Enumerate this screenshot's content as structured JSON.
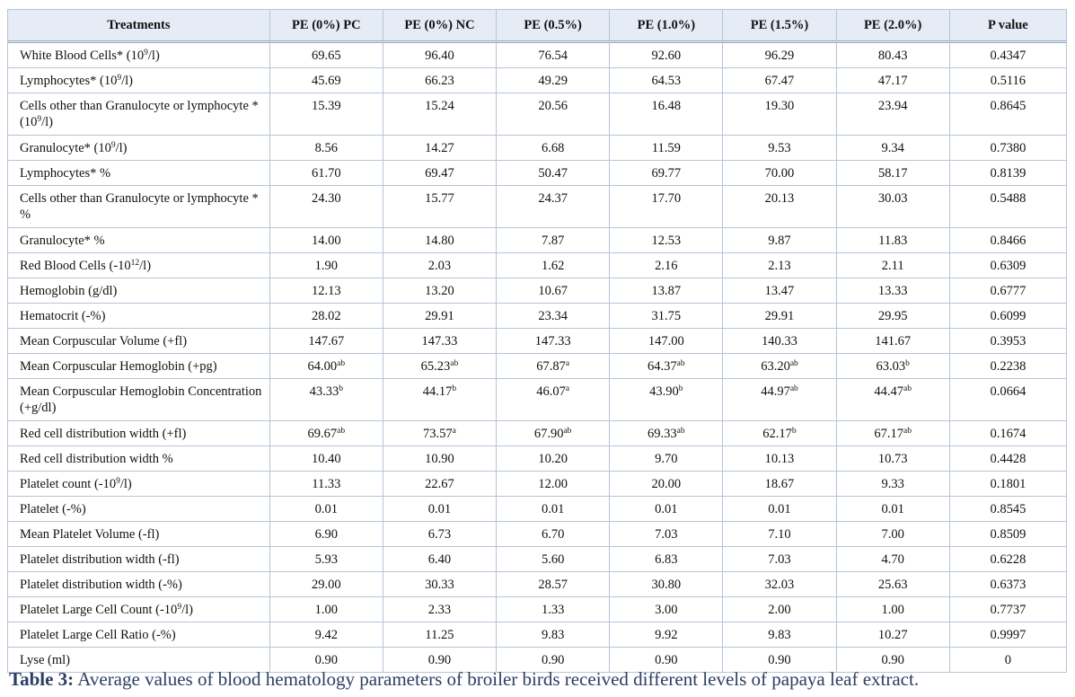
{
  "table": {
    "headers": [
      "Treatments",
      "PE (0%) PC",
      "PE (0%) NC",
      "PE (0.5%)",
      "PE (1.0%)",
      "PE (1.5%)",
      "PE (2.0%)",
      "P value"
    ],
    "rows": [
      {
        "tall": false,
        "label": [
          "White Blood Cells* (10",
          "9",
          "/l)"
        ],
        "cells": [
          [
            "69.65",
            ""
          ],
          [
            "96.40",
            ""
          ],
          [
            "76.54",
            ""
          ],
          [
            "92.60",
            ""
          ],
          [
            "96.29",
            ""
          ],
          [
            "80.43",
            ""
          ],
          [
            "0.4347",
            ""
          ]
        ]
      },
      {
        "tall": false,
        "label": [
          "Lymphocytes* (10",
          "9",
          "/l)"
        ],
        "cells": [
          [
            "45.69",
            ""
          ],
          [
            "66.23",
            ""
          ],
          [
            "49.29",
            ""
          ],
          [
            "64.53",
            ""
          ],
          [
            "67.47",
            ""
          ],
          [
            "47.17",
            ""
          ],
          [
            "0.5116",
            ""
          ]
        ]
      },
      {
        "tall": true,
        "label": [
          "Cells other than Granulocyte or lymphocyte *(10",
          "9",
          "/l)"
        ],
        "cells": [
          [
            "15.39",
            ""
          ],
          [
            "15.24",
            ""
          ],
          [
            "20.56",
            ""
          ],
          [
            "16.48",
            ""
          ],
          [
            "19.30",
            ""
          ],
          [
            "23.94",
            ""
          ],
          [
            "0.8645",
            ""
          ]
        ]
      },
      {
        "tall": false,
        "label": [
          "Granulocyte* (10",
          "9",
          "/l)"
        ],
        "cells": [
          [
            "8.56",
            ""
          ],
          [
            "14.27",
            ""
          ],
          [
            "6.68",
            ""
          ],
          [
            "11.59",
            ""
          ],
          [
            "9.53",
            ""
          ],
          [
            "9.34",
            ""
          ],
          [
            "0.7380",
            ""
          ]
        ]
      },
      {
        "tall": false,
        "label": [
          "Lymphocytes* %",
          "",
          ""
        ],
        "cells": [
          [
            "61.70",
            ""
          ],
          [
            "69.47",
            ""
          ],
          [
            "50.47",
            ""
          ],
          [
            "69.77",
            ""
          ],
          [
            "70.00",
            ""
          ],
          [
            "58.17",
            ""
          ],
          [
            "0.8139",
            ""
          ]
        ]
      },
      {
        "tall": true,
        "label": [
          "Cells other than Granulocyte or lymphocyte * %",
          "",
          ""
        ],
        "cells": [
          [
            "24.30",
            ""
          ],
          [
            "15.77",
            ""
          ],
          [
            "24.37",
            ""
          ],
          [
            "17.70",
            ""
          ],
          [
            "20.13",
            ""
          ],
          [
            "30.03",
            ""
          ],
          [
            "0.5488",
            ""
          ]
        ]
      },
      {
        "tall": false,
        "label": [
          "Granulocyte* %",
          "",
          ""
        ],
        "cells": [
          [
            "14.00",
            ""
          ],
          [
            "14.80",
            ""
          ],
          [
            "7.87",
            ""
          ],
          [
            "12.53",
            ""
          ],
          [
            "9.87",
            ""
          ],
          [
            "11.83",
            ""
          ],
          [
            "0.8466",
            ""
          ]
        ]
      },
      {
        "tall": false,
        "label": [
          "Red Blood Cells (-10",
          "12",
          "/l)"
        ],
        "cells": [
          [
            "1.90",
            ""
          ],
          [
            "2.03",
            ""
          ],
          [
            "1.62",
            ""
          ],
          [
            "2.16",
            ""
          ],
          [
            "2.13",
            ""
          ],
          [
            "2.11",
            ""
          ],
          [
            "0.6309",
            ""
          ]
        ]
      },
      {
        "tall": false,
        "label": [
          "Hemoglobin (g/dl)",
          "",
          ""
        ],
        "cells": [
          [
            "12.13",
            ""
          ],
          [
            "13.20",
            ""
          ],
          [
            "10.67",
            ""
          ],
          [
            "13.87",
            ""
          ],
          [
            "13.47",
            ""
          ],
          [
            "13.33",
            ""
          ],
          [
            "0.6777",
            ""
          ]
        ]
      },
      {
        "tall": false,
        "label": [
          "Hematocrit (-%)",
          "",
          ""
        ],
        "cells": [
          [
            "28.02",
            ""
          ],
          [
            "29.91",
            ""
          ],
          [
            "23.34",
            ""
          ],
          [
            "31.75",
            ""
          ],
          [
            "29.91",
            ""
          ],
          [
            "29.95",
            ""
          ],
          [
            "0.6099",
            ""
          ]
        ]
      },
      {
        "tall": false,
        "label": [
          "Mean Corpuscular Volume (+fl)",
          "",
          ""
        ],
        "cells": [
          [
            "147.67",
            ""
          ],
          [
            "147.33",
            ""
          ],
          [
            "147.33",
            ""
          ],
          [
            "147.00",
            ""
          ],
          [
            "140.33",
            ""
          ],
          [
            "141.67",
            ""
          ],
          [
            "0.3953",
            ""
          ]
        ]
      },
      {
        "tall": false,
        "label": [
          "Mean Corpuscular Hemoglobin (+pg)",
          "",
          ""
        ],
        "cells": [
          [
            "64.00",
            "ab"
          ],
          [
            "65.23",
            "ab"
          ],
          [
            "67.87",
            "a"
          ],
          [
            "64.37",
            "ab"
          ],
          [
            "63.20",
            "ab"
          ],
          [
            "63.03",
            "b"
          ],
          [
            "0.2238",
            ""
          ]
        ]
      },
      {
        "tall": true,
        "label": [
          "Mean Corpuscular Hemoglobin Concentration (+g/dl)",
          "",
          ""
        ],
        "cells": [
          [
            "43.33",
            "b"
          ],
          [
            "44.17",
            "b"
          ],
          [
            "46.07",
            "a"
          ],
          [
            "43.90",
            "b"
          ],
          [
            "44.97",
            "ab"
          ],
          [
            "44.47",
            "ab"
          ],
          [
            "0.0664",
            ""
          ]
        ]
      },
      {
        "tall": false,
        "label": [
          "Red cell distribution width (+fl)",
          "",
          ""
        ],
        "cells": [
          [
            "69.67",
            "ab"
          ],
          [
            "73.57",
            "a"
          ],
          [
            "67.90",
            "ab"
          ],
          [
            "69.33",
            "ab"
          ],
          [
            "62.17",
            "b"
          ],
          [
            "67.17",
            "ab"
          ],
          [
            "0.1674",
            ""
          ]
        ]
      },
      {
        "tall": false,
        "label": [
          "Red cell distribution width %",
          "",
          ""
        ],
        "cells": [
          [
            "10.40",
            ""
          ],
          [
            "10.90",
            ""
          ],
          [
            "10.20",
            ""
          ],
          [
            "9.70",
            ""
          ],
          [
            "10.13",
            ""
          ],
          [
            "10.73",
            ""
          ],
          [
            "0.4428",
            ""
          ]
        ]
      },
      {
        "tall": false,
        "label": [
          "Platelet count (-10",
          "9",
          "/l)"
        ],
        "cells": [
          [
            "11.33",
            ""
          ],
          [
            "22.67",
            ""
          ],
          [
            "12.00",
            ""
          ],
          [
            "20.00",
            ""
          ],
          [
            "18.67",
            ""
          ],
          [
            "9.33",
            ""
          ],
          [
            "0.1801",
            ""
          ]
        ]
      },
      {
        "tall": false,
        "label": [
          "Platelet (-%)",
          "",
          ""
        ],
        "cells": [
          [
            "0.01",
            ""
          ],
          [
            "0.01",
            ""
          ],
          [
            "0.01",
            ""
          ],
          [
            "0.01",
            ""
          ],
          [
            "0.01",
            ""
          ],
          [
            "0.01",
            ""
          ],
          [
            "0.8545",
            ""
          ]
        ]
      },
      {
        "tall": false,
        "label": [
          "Mean Platelet Volume (-fl)",
          "",
          ""
        ],
        "cells": [
          [
            "6.90",
            ""
          ],
          [
            "6.73",
            ""
          ],
          [
            "6.70",
            ""
          ],
          [
            "7.03",
            ""
          ],
          [
            "7.10",
            ""
          ],
          [
            "7.00",
            ""
          ],
          [
            "0.8509",
            ""
          ]
        ]
      },
      {
        "tall": false,
        "label": [
          "Platelet distribution width (-fl)",
          "",
          ""
        ],
        "cells": [
          [
            "5.93",
            ""
          ],
          [
            "6.40",
            ""
          ],
          [
            "5.60",
            ""
          ],
          [
            "6.83",
            ""
          ],
          [
            "7.03",
            ""
          ],
          [
            "4.70",
            ""
          ],
          [
            "0.6228",
            ""
          ]
        ]
      },
      {
        "tall": false,
        "label": [
          "Platelet distribution width (-%)",
          "",
          ""
        ],
        "cells": [
          [
            "29.00",
            ""
          ],
          [
            "30.33",
            ""
          ],
          [
            "28.57",
            ""
          ],
          [
            "30.80",
            ""
          ],
          [
            "32.03",
            ""
          ],
          [
            "25.63",
            ""
          ],
          [
            "0.6373",
            ""
          ]
        ]
      },
      {
        "tall": false,
        "label": [
          "Platelet Large Cell Count (-10",
          "9",
          "/l)"
        ],
        "cells": [
          [
            "1.00",
            ""
          ],
          [
            "2.33",
            ""
          ],
          [
            "1.33",
            ""
          ],
          [
            "3.00",
            ""
          ],
          [
            "2.00",
            ""
          ],
          [
            "1.00",
            ""
          ],
          [
            "0.7737",
            ""
          ]
        ]
      },
      {
        "tall": false,
        "label": [
          "Platelet Large Cell Ratio (-%)",
          "",
          ""
        ],
        "cells": [
          [
            "9.42",
            ""
          ],
          [
            "11.25",
            ""
          ],
          [
            "9.83",
            ""
          ],
          [
            "9.92",
            ""
          ],
          [
            "9.83",
            ""
          ],
          [
            "10.27",
            ""
          ],
          [
            "0.9997",
            ""
          ]
        ]
      },
      {
        "tall": false,
        "label": [
          "Lyse (ml)",
          "",
          ""
        ],
        "cells": [
          [
            "0.90",
            ""
          ],
          [
            "0.90",
            ""
          ],
          [
            "0.90",
            ""
          ],
          [
            "0.90",
            ""
          ],
          [
            "0.90",
            ""
          ],
          [
            "0.90",
            ""
          ],
          [
            "0",
            ""
          ]
        ]
      }
    ]
  },
  "caption": {
    "label": "Table 3:",
    "text": "Average values of blood hematology parameters of broiler birds received different levels of papaya leaf extract."
  },
  "colors": {
    "header_bg": "#e6ecf5",
    "grid": "#b6c4d8",
    "caption": "#2c3e63"
  }
}
